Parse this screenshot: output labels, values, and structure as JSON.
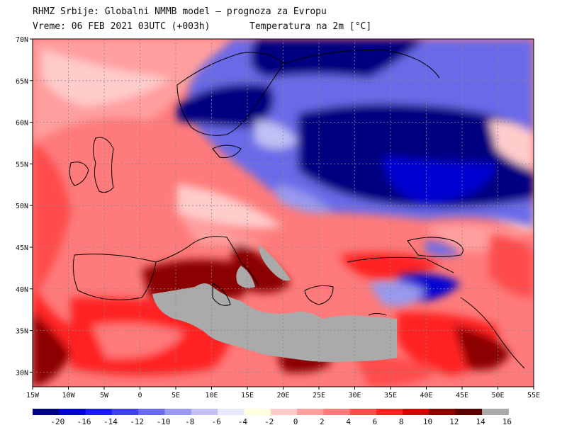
{
  "header": {
    "line1": "RHMZ Srbije: Globalni NMMB model – prognoza za Evropu",
    "line2_time": "Vreme: 06 FEB 2021 03UTC (+003h)",
    "line2_field": "Temperatura na 2m [°C]"
  },
  "axes": {
    "lon_labels": [
      "15W",
      "10W",
      "5W",
      "0",
      "5E",
      "10E",
      "15E",
      "20E",
      "25E",
      "30E",
      "35E",
      "40E",
      "45E",
      "50E",
      "55E"
    ],
    "lat_labels": [
      "70N",
      "65N",
      "60N",
      "55N",
      "50N",
      "45N",
      "40N",
      "35N",
      "30N"
    ]
  },
  "colorbar": {
    "colors": [
      "#000080",
      "#0000d0",
      "#1a1aff",
      "#4040f0",
      "#6a6ae8",
      "#9999ee",
      "#c0c0f4",
      "#e8e8fb",
      "#ffffe0",
      "#ffcccc",
      "#ff9f9f",
      "#ff7a7a",
      "#ff4c4c",
      "#ff2020",
      "#d40000",
      "#8b0000",
      "#5a0000",
      "#aaaaaa"
    ],
    "labels": [
      "-20",
      "-16",
      "-14",
      "-12",
      "-10",
      "-8",
      "-6",
      "-4",
      "-2",
      "0",
      "2",
      "4",
      "6",
      "8",
      "10",
      "12",
      "14",
      "16"
    ]
  },
  "map": {
    "sea_mask_color": "#aaaaaa",
    "gridline_color": "#888888"
  }
}
